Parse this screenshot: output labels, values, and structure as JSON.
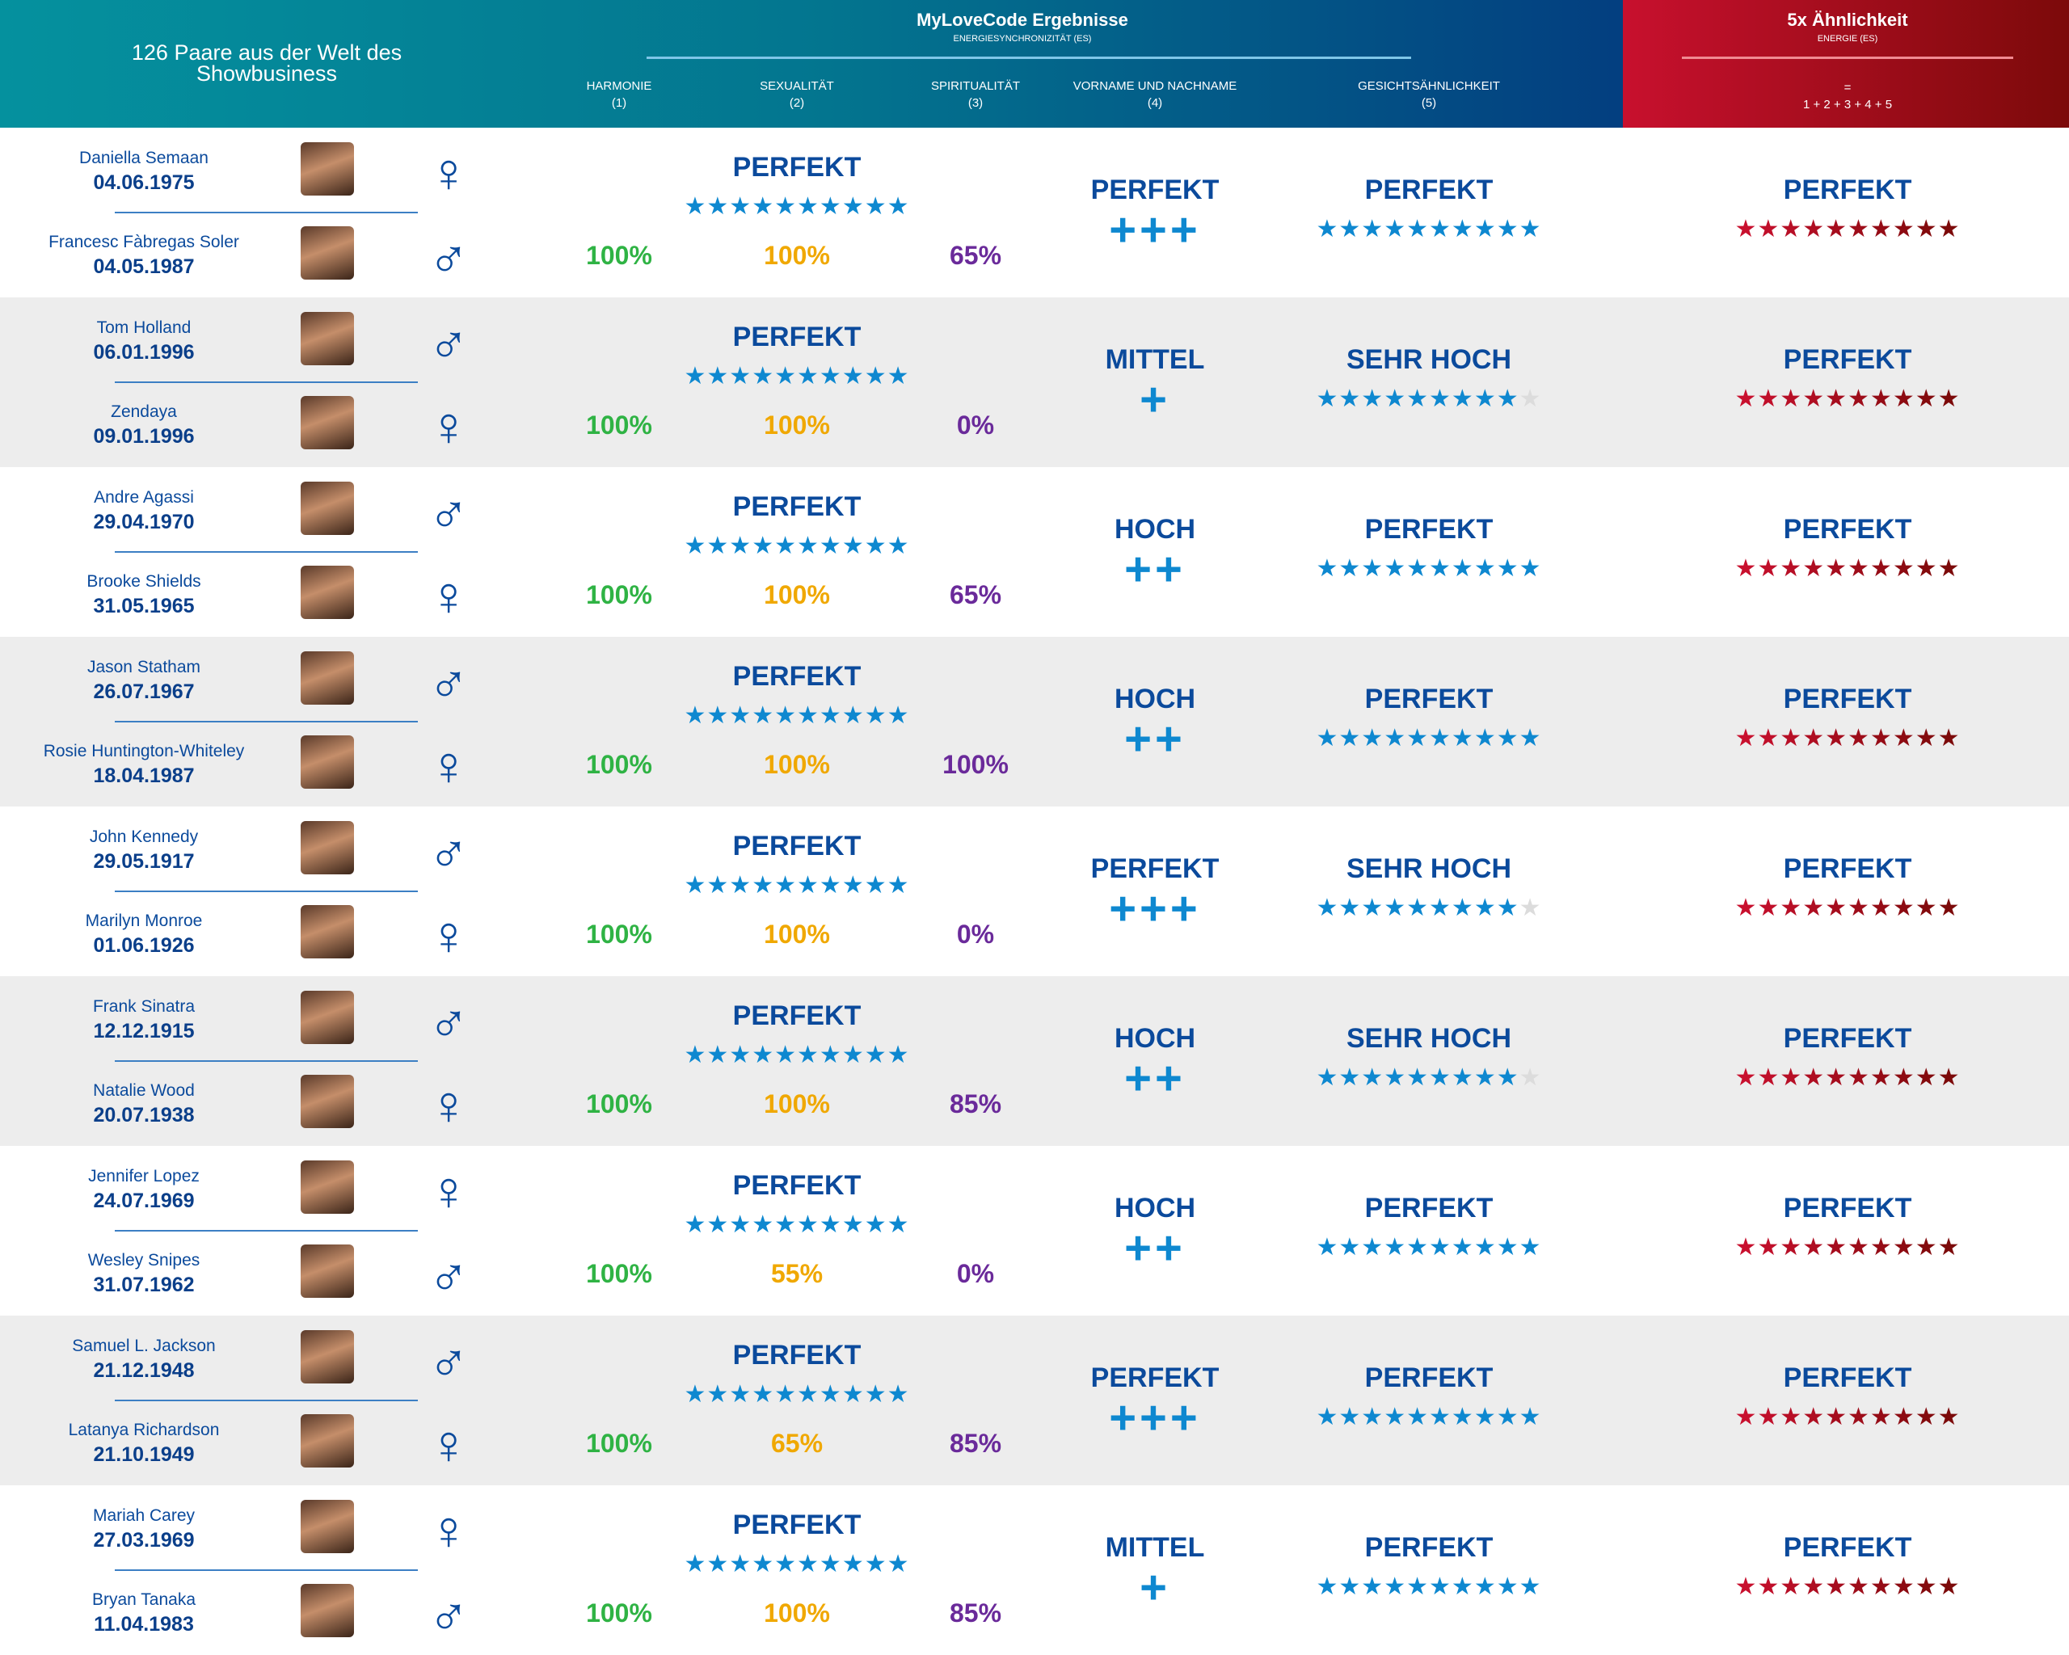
{
  "header": {
    "left_title": "126 Paare aus der Welt des Showbusiness",
    "title": "MyLoveCode Ergebnisse",
    "subtitle": "ENERGIESYNCHRONIZITÄT (ES)",
    "columns": [
      {
        "label": "HARMONIE",
        "num": "(1)"
      },
      {
        "label": "SEXUALITÄT",
        "num": "(2)"
      },
      {
        "label": "SPIRITUALITÄT",
        "num": "(3)"
      },
      {
        "label": "VORNAME UND NACHNAME",
        "num": "(4)"
      },
      {
        "label": "GESICHTSÄHNLICHKEIT",
        "num": "(5)"
      }
    ],
    "right_title": "5x Ähnlichkeit",
    "right_subtitle": "ENERGIE (ES)",
    "right_eq": "=",
    "right_formula": "1 + 2 + 3 + 4 + 5"
  },
  "colors": {
    "harmonie": "#2fb344",
    "sexualitaet": "#f0a800",
    "spiritualitaet": "#6a2a9a",
    "star_blue": "#0e88d0",
    "star_red_start": "#c8102e",
    "star_red_end": "#7c0a0a",
    "text_blue": "#0b4a9c"
  },
  "pairs": [
    {
      "p1": {
        "name": "Daniella Semaan",
        "date": "04.06.1975",
        "gender": "♀"
      },
      "p2": {
        "name": "Francesc Fàbregas Soler",
        "date": "04.05.1987",
        "gender": "♂"
      },
      "es_label": "PERFEKT",
      "es_stars": 10,
      "harmonie": "100%",
      "sexualitaet": "100%",
      "spiritualitaet": "65%",
      "name_label": "PERFEKT",
      "name_plus": "+++",
      "face_label": "PERFEKT",
      "face_stars": 10,
      "total_label": "PERFEKT",
      "total_stars": 10
    },
    {
      "p1": {
        "name": "Tom Holland",
        "date": "06.01.1996",
        "gender": "♂"
      },
      "p2": {
        "name": "Zendaya",
        "date": "09.01.1996",
        "gender": "♀"
      },
      "es_label": "PERFEKT",
      "es_stars": 10,
      "harmonie": "100%",
      "sexualitaet": "100%",
      "spiritualitaet": "0%",
      "name_label": "MITTEL",
      "name_plus": "+",
      "face_label": "SEHR HOCH",
      "face_stars": 9,
      "total_label": "PERFEKT",
      "total_stars": 10
    },
    {
      "p1": {
        "name": "Andre Agassi",
        "date": "29.04.1970",
        "gender": "♂"
      },
      "p2": {
        "name": "Brooke Shields",
        "date": "31.05.1965",
        "gender": "♀"
      },
      "es_label": "PERFEKT",
      "es_stars": 10,
      "harmonie": "100%",
      "sexualitaet": "100%",
      "spiritualitaet": "65%",
      "name_label": "HOCH",
      "name_plus": "++",
      "face_label": "PERFEKT",
      "face_stars": 10,
      "total_label": "PERFEKT",
      "total_stars": 10
    },
    {
      "p1": {
        "name": "Jason Statham",
        "date": "26.07.1967",
        "gender": "♂"
      },
      "p2": {
        "name": "Rosie Huntington-Whiteley",
        "date": "18.04.1987",
        "gender": "♀"
      },
      "es_label": "PERFEKT",
      "es_stars": 10,
      "harmonie": "100%",
      "sexualitaet": "100%",
      "spiritualitaet": "100%",
      "name_label": "HOCH",
      "name_plus": "++",
      "face_label": "PERFEKT",
      "face_stars": 10,
      "total_label": "PERFEKT",
      "total_stars": 10
    },
    {
      "p1": {
        "name": "John Kennedy",
        "date": "29.05.1917",
        "gender": "♂"
      },
      "p2": {
        "name": "Marilyn Monroe",
        "date": "01.06.1926",
        "gender": "♀"
      },
      "es_label": "PERFEKT",
      "es_stars": 10,
      "harmonie": "100%",
      "sexualitaet": "100%",
      "spiritualitaet": "0%",
      "name_label": "PERFEKT",
      "name_plus": "+++",
      "face_label": "SEHR HOCH",
      "face_stars": 9,
      "total_label": "PERFEKT",
      "total_stars": 10
    },
    {
      "p1": {
        "name": "Frank Sinatra",
        "date": "12.12.1915",
        "gender": "♂"
      },
      "p2": {
        "name": "Natalie Wood",
        "date": "20.07.1938",
        "gender": "♀"
      },
      "es_label": "PERFEKT",
      "es_stars": 10,
      "harmonie": "100%",
      "sexualitaet": "100%",
      "spiritualitaet": "85%",
      "name_label": "HOCH",
      "name_plus": "++",
      "face_label": "SEHR HOCH",
      "face_stars": 9,
      "total_label": "PERFEKT",
      "total_stars": 10
    },
    {
      "p1": {
        "name": "Jennifer Lopez",
        "date": "24.07.1969",
        "gender": "♀"
      },
      "p2": {
        "name": "Wesley Snipes",
        "date": "31.07.1962",
        "gender": "♂"
      },
      "es_label": "PERFEKT",
      "es_stars": 10,
      "harmonie": "100%",
      "sexualitaet": "55%",
      "spiritualitaet": "0%",
      "name_label": "HOCH",
      "name_plus": "++",
      "face_label": "PERFEKT",
      "face_stars": 10,
      "total_label": "PERFEKT",
      "total_stars": 10
    },
    {
      "p1": {
        "name": "Samuel L. Jackson",
        "date": "21.12.1948",
        "gender": "♂"
      },
      "p2": {
        "name": "Latanya Richardson",
        "date": "21.10.1949",
        "gender": "♀"
      },
      "es_label": "PERFEKT",
      "es_stars": 10,
      "harmonie": "100%",
      "sexualitaet": "65%",
      "spiritualitaet": "85%",
      "name_label": "PERFEKT",
      "name_plus": "+++",
      "face_label": "PERFEKT",
      "face_stars": 10,
      "total_label": "PERFEKT",
      "total_stars": 10
    },
    {
      "p1": {
        "name": "Mariah Carey",
        "date": "27.03.1969",
        "gender": "♀"
      },
      "p2": {
        "name": "Bryan Tanaka",
        "date": "11.04.1983",
        "gender": "♂"
      },
      "es_label": "PERFEKT",
      "es_stars": 10,
      "harmonie": "100%",
      "sexualitaet": "100%",
      "spiritualitaet": "85%",
      "name_label": "MITTEL",
      "name_plus": "+",
      "face_label": "PERFEKT",
      "face_stars": 10,
      "total_label": "PERFEKT",
      "total_stars": 10
    }
  ]
}
